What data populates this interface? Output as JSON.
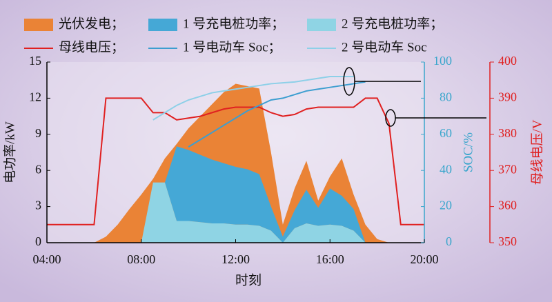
{
  "chart_data": {
    "type": "line",
    "x": [
      4,
      4.5,
      5,
      5.5,
      6,
      6.5,
      7,
      7.5,
      8,
      8.5,
      9,
      9.5,
      10,
      10.5,
      11,
      11.5,
      12,
      12.5,
      13,
      13.5,
      14,
      14.5,
      15,
      15.5,
      16,
      16.5,
      17,
      17.5,
      18,
      18.5,
      19,
      19.5,
      20
    ],
    "xlim": [
      4,
      20
    ],
    "xticks": [
      {
        "value": 4,
        "label": "04:00"
      },
      {
        "value": 8,
        "label": "08:00"
      },
      {
        "value": 12,
        "label": "12:00"
      },
      {
        "value": 16,
        "label": "16:00"
      },
      {
        "value": 20,
        "label": "20:00"
      }
    ],
    "xlabel": "时刻",
    "ylabel": "电功率/kW",
    "y2label": "SOC/%",
    "y3label": "母线电压/V",
    "ylim": [
      0,
      15
    ],
    "yticks": [
      0,
      3,
      6,
      9,
      12,
      15
    ],
    "y2lim": [
      0,
      100
    ],
    "y2ticks": [
      0,
      20,
      40,
      60,
      80,
      100
    ],
    "y3lim": [
      350,
      400
    ],
    "y3ticks": [
      350,
      360,
      370,
      380,
      390,
      400
    ],
    "y2color": "#3aa6cc",
    "y3color": "#e02020",
    "series": [
      {
        "name": "光伏发电；",
        "type": "area",
        "color": "#ea8336",
        "values": [
          0,
          0,
          0,
          0,
          0,
          0.5,
          1.5,
          2.8,
          4.0,
          5.3,
          7.0,
          8.2,
          9.5,
          10.5,
          11.5,
          12.5,
          13.2,
          13.0,
          12.8,
          7.5,
          1.5,
          4.5,
          6.8,
          3.5,
          5.5,
          7.0,
          4.0,
          1.5,
          0.3,
          0,
          0,
          0,
          0
        ]
      },
      {
        "name": "1 号充电桩功率；",
        "type": "area",
        "stack_base": 2,
        "color": "#45a8d6",
        "values": [
          0,
          0,
          0,
          0,
          0,
          0,
          0,
          0,
          0,
          0,
          0,
          6.2,
          5.9,
          5.6,
          5.3,
          5.0,
          4.8,
          4.6,
          4.3,
          2.0,
          0.5,
          1.5,
          2.8,
          1.5,
          3.0,
          2.5,
          1.8,
          0,
          0,
          0,
          0,
          0,
          0
        ]
      },
      {
        "name": "2 号充电桩功率；",
        "type": "area",
        "color": "#8fd4e4",
        "values": [
          0,
          0,
          0,
          0,
          0,
          0,
          0,
          0,
          0,
          5.0,
          5.0,
          1.8,
          1.8,
          1.7,
          1.6,
          1.6,
          1.5,
          1.5,
          1.4,
          1.0,
          0,
          1.2,
          1.6,
          1.4,
          1.5,
          1.4,
          1.0,
          0,
          0,
          0,
          0,
          0,
          0
        ]
      },
      {
        "name": "母线电压；",
        "type": "line",
        "axis": "y3",
        "color": "#e02020",
        "values": [
          355,
          355,
          355,
          355,
          355,
          390,
          390,
          390,
          390,
          386,
          386,
          384,
          384.5,
          385,
          386,
          387,
          387.5,
          387.5,
          387.5,
          386,
          385,
          385.5,
          387,
          387.5,
          387.5,
          387.5,
          387.5,
          390,
          390,
          383,
          355,
          355,
          355
        ]
      },
      {
        "name": "1 号电动车 Soc；",
        "type": "line",
        "axis": "y2",
        "color": "#3c9ed0",
        "values": [
          null,
          null,
          null,
          null,
          null,
          null,
          null,
          null,
          null,
          null,
          null,
          null,
          53,
          57,
          61,
          65,
          69,
          73,
          76,
          79,
          80,
          82,
          84,
          85,
          86,
          87,
          88,
          89,
          null,
          null,
          null,
          null,
          null
        ]
      },
      {
        "name": "2 号电动车 Soc",
        "type": "line",
        "axis": "y2",
        "color": "#8dd0e8",
        "values": [
          null,
          null,
          null,
          null,
          null,
          null,
          null,
          null,
          null,
          68,
          72,
          76,
          79,
          81,
          83,
          84,
          85,
          86,
          87,
          88,
          88.5,
          89,
          90,
          91,
          92,
          92,
          92,
          null,
          null,
          null,
          null,
          null,
          null
        ]
      }
    ]
  }
}
